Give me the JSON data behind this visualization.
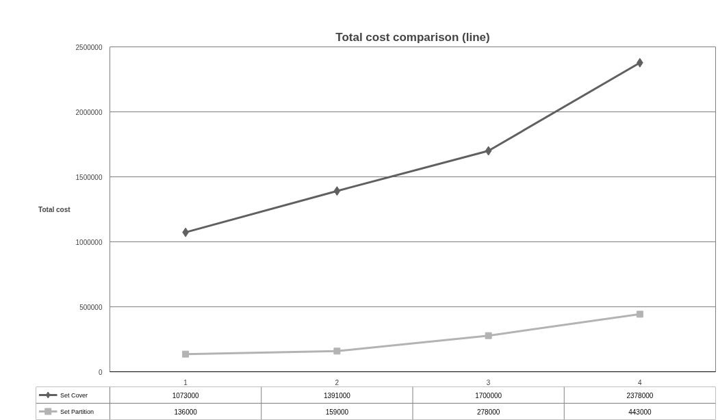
{
  "chart_data": {
    "type": "line",
    "title": "Total cost comparison (line)",
    "ylabel": "Total cost",
    "categories": [
      "1",
      "2",
      "3",
      "4"
    ],
    "series": [
      {
        "name": "Set Cover",
        "color": "#606060",
        "marker": "diamond",
        "values": [
          1073000,
          1391000,
          1700000,
          2378000
        ]
      },
      {
        "name": "Set Partition",
        "color": "#b3b3b3",
        "marker": "square",
        "values": [
          136000,
          159000,
          278000,
          443000
        ]
      }
    ],
    "ylim": [
      0,
      2500000
    ],
    "yticks": [
      0,
      500000,
      1000000,
      1500000,
      2000000,
      2500000
    ],
    "grid": "y",
    "legend": "bottom",
    "data_labels": true,
    "line_style": "solid"
  }
}
